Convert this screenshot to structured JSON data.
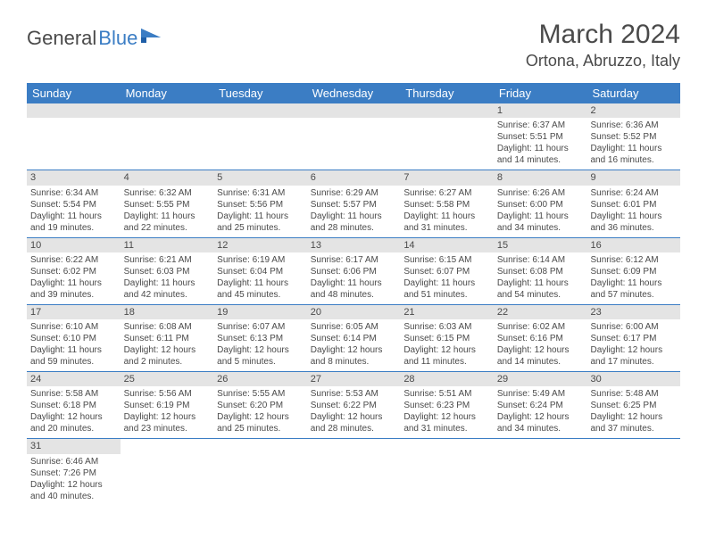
{
  "logo": {
    "text1": "General",
    "text2": "Blue"
  },
  "title": "March 2024",
  "location": "Ortona, Abruzzo, Italy",
  "header_bg": "#3b7dc4",
  "daynum_bg": "#e4e4e4",
  "dow": [
    "Sunday",
    "Monday",
    "Tuesday",
    "Wednesday",
    "Thursday",
    "Friday",
    "Saturday"
  ],
  "weeks": [
    [
      {
        "n": "",
        "sr": "",
        "ss": "",
        "dl": ""
      },
      {
        "n": "",
        "sr": "",
        "ss": "",
        "dl": ""
      },
      {
        "n": "",
        "sr": "",
        "ss": "",
        "dl": ""
      },
      {
        "n": "",
        "sr": "",
        "ss": "",
        "dl": ""
      },
      {
        "n": "",
        "sr": "",
        "ss": "",
        "dl": ""
      },
      {
        "n": "1",
        "sr": "Sunrise: 6:37 AM",
        "ss": "Sunset: 5:51 PM",
        "dl": "Daylight: 11 hours and 14 minutes."
      },
      {
        "n": "2",
        "sr": "Sunrise: 6:36 AM",
        "ss": "Sunset: 5:52 PM",
        "dl": "Daylight: 11 hours and 16 minutes."
      }
    ],
    [
      {
        "n": "3",
        "sr": "Sunrise: 6:34 AM",
        "ss": "Sunset: 5:54 PM",
        "dl": "Daylight: 11 hours and 19 minutes."
      },
      {
        "n": "4",
        "sr": "Sunrise: 6:32 AM",
        "ss": "Sunset: 5:55 PM",
        "dl": "Daylight: 11 hours and 22 minutes."
      },
      {
        "n": "5",
        "sr": "Sunrise: 6:31 AM",
        "ss": "Sunset: 5:56 PM",
        "dl": "Daylight: 11 hours and 25 minutes."
      },
      {
        "n": "6",
        "sr": "Sunrise: 6:29 AM",
        "ss": "Sunset: 5:57 PM",
        "dl": "Daylight: 11 hours and 28 minutes."
      },
      {
        "n": "7",
        "sr": "Sunrise: 6:27 AM",
        "ss": "Sunset: 5:58 PM",
        "dl": "Daylight: 11 hours and 31 minutes."
      },
      {
        "n": "8",
        "sr": "Sunrise: 6:26 AM",
        "ss": "Sunset: 6:00 PM",
        "dl": "Daylight: 11 hours and 34 minutes."
      },
      {
        "n": "9",
        "sr": "Sunrise: 6:24 AM",
        "ss": "Sunset: 6:01 PM",
        "dl": "Daylight: 11 hours and 36 minutes."
      }
    ],
    [
      {
        "n": "10",
        "sr": "Sunrise: 6:22 AM",
        "ss": "Sunset: 6:02 PM",
        "dl": "Daylight: 11 hours and 39 minutes."
      },
      {
        "n": "11",
        "sr": "Sunrise: 6:21 AM",
        "ss": "Sunset: 6:03 PM",
        "dl": "Daylight: 11 hours and 42 minutes."
      },
      {
        "n": "12",
        "sr": "Sunrise: 6:19 AM",
        "ss": "Sunset: 6:04 PM",
        "dl": "Daylight: 11 hours and 45 minutes."
      },
      {
        "n": "13",
        "sr": "Sunrise: 6:17 AM",
        "ss": "Sunset: 6:06 PM",
        "dl": "Daylight: 11 hours and 48 minutes."
      },
      {
        "n": "14",
        "sr": "Sunrise: 6:15 AM",
        "ss": "Sunset: 6:07 PM",
        "dl": "Daylight: 11 hours and 51 minutes."
      },
      {
        "n": "15",
        "sr": "Sunrise: 6:14 AM",
        "ss": "Sunset: 6:08 PM",
        "dl": "Daylight: 11 hours and 54 minutes."
      },
      {
        "n": "16",
        "sr": "Sunrise: 6:12 AM",
        "ss": "Sunset: 6:09 PM",
        "dl": "Daylight: 11 hours and 57 minutes."
      }
    ],
    [
      {
        "n": "17",
        "sr": "Sunrise: 6:10 AM",
        "ss": "Sunset: 6:10 PM",
        "dl": "Daylight: 11 hours and 59 minutes."
      },
      {
        "n": "18",
        "sr": "Sunrise: 6:08 AM",
        "ss": "Sunset: 6:11 PM",
        "dl": "Daylight: 12 hours and 2 minutes."
      },
      {
        "n": "19",
        "sr": "Sunrise: 6:07 AM",
        "ss": "Sunset: 6:13 PM",
        "dl": "Daylight: 12 hours and 5 minutes."
      },
      {
        "n": "20",
        "sr": "Sunrise: 6:05 AM",
        "ss": "Sunset: 6:14 PM",
        "dl": "Daylight: 12 hours and 8 minutes."
      },
      {
        "n": "21",
        "sr": "Sunrise: 6:03 AM",
        "ss": "Sunset: 6:15 PM",
        "dl": "Daylight: 12 hours and 11 minutes."
      },
      {
        "n": "22",
        "sr": "Sunrise: 6:02 AM",
        "ss": "Sunset: 6:16 PM",
        "dl": "Daylight: 12 hours and 14 minutes."
      },
      {
        "n": "23",
        "sr": "Sunrise: 6:00 AM",
        "ss": "Sunset: 6:17 PM",
        "dl": "Daylight: 12 hours and 17 minutes."
      }
    ],
    [
      {
        "n": "24",
        "sr": "Sunrise: 5:58 AM",
        "ss": "Sunset: 6:18 PM",
        "dl": "Daylight: 12 hours and 20 minutes."
      },
      {
        "n": "25",
        "sr": "Sunrise: 5:56 AM",
        "ss": "Sunset: 6:19 PM",
        "dl": "Daylight: 12 hours and 23 minutes."
      },
      {
        "n": "26",
        "sr": "Sunrise: 5:55 AM",
        "ss": "Sunset: 6:20 PM",
        "dl": "Daylight: 12 hours and 25 minutes."
      },
      {
        "n": "27",
        "sr": "Sunrise: 5:53 AM",
        "ss": "Sunset: 6:22 PM",
        "dl": "Daylight: 12 hours and 28 minutes."
      },
      {
        "n": "28",
        "sr": "Sunrise: 5:51 AM",
        "ss": "Sunset: 6:23 PM",
        "dl": "Daylight: 12 hours and 31 minutes."
      },
      {
        "n": "29",
        "sr": "Sunrise: 5:49 AM",
        "ss": "Sunset: 6:24 PM",
        "dl": "Daylight: 12 hours and 34 minutes."
      },
      {
        "n": "30",
        "sr": "Sunrise: 5:48 AM",
        "ss": "Sunset: 6:25 PM",
        "dl": "Daylight: 12 hours and 37 minutes."
      }
    ],
    [
      {
        "n": "31",
        "sr": "Sunrise: 6:46 AM",
        "ss": "Sunset: 7:26 PM",
        "dl": "Daylight: 12 hours and 40 minutes."
      },
      {
        "n": "",
        "sr": "",
        "ss": "",
        "dl": ""
      },
      {
        "n": "",
        "sr": "",
        "ss": "",
        "dl": ""
      },
      {
        "n": "",
        "sr": "",
        "ss": "",
        "dl": ""
      },
      {
        "n": "",
        "sr": "",
        "ss": "",
        "dl": ""
      },
      {
        "n": "",
        "sr": "",
        "ss": "",
        "dl": ""
      },
      {
        "n": "",
        "sr": "",
        "ss": "",
        "dl": ""
      }
    ]
  ]
}
